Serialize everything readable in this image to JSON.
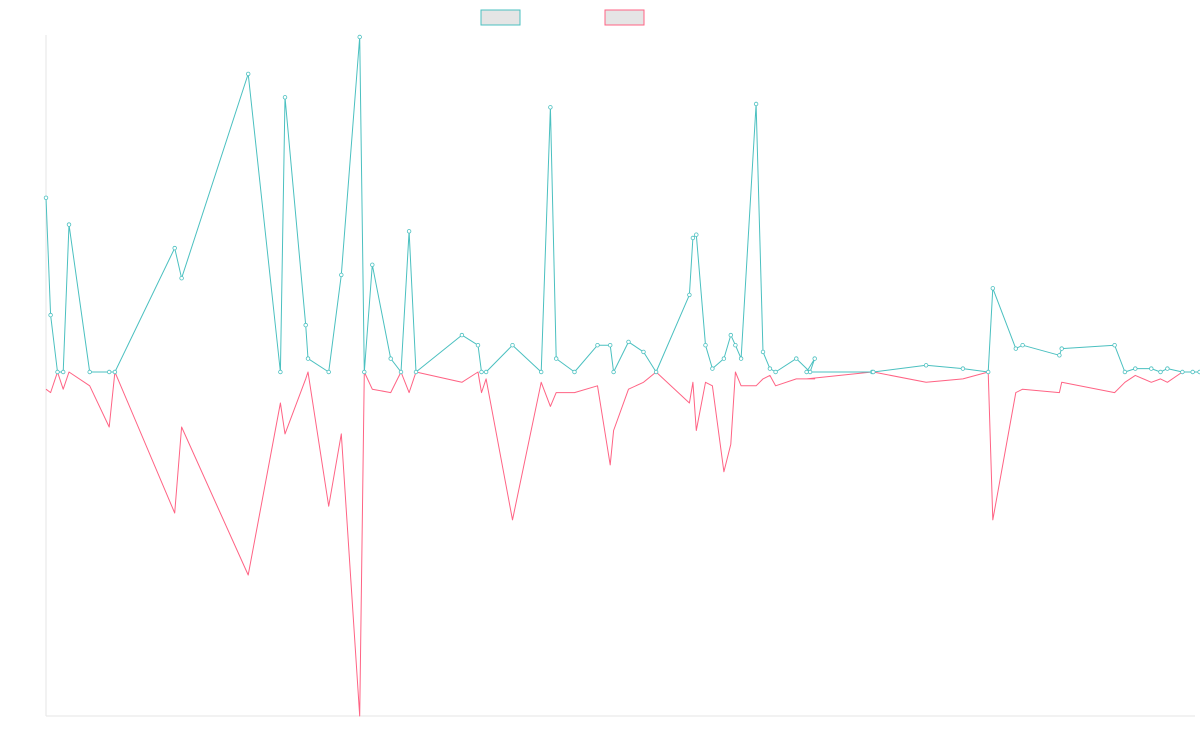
{
  "chart_data": {
    "type": "line",
    "title": "",
    "xlabel": "",
    "ylabel": "",
    "x": [
      0.0,
      0.4,
      1.0,
      1.5,
      2.0,
      3.8,
      5.5,
      6.0,
      11.2,
      11.8,
      17.6,
      20.4,
      20.8,
      22.6,
      22.8,
      24.6,
      25.7,
      27.3,
      27.7,
      28.4,
      30.0,
      30.9,
      31.6,
      32.2,
      36.2,
      37.6,
      37.9,
      38.3,
      40.6,
      43.1,
      43.9,
      44.4,
      46.0,
      48.0,
      49.1,
      49.4,
      50.7,
      52.0,
      53.1,
      56.0,
      56.3,
      56.6,
      57.4,
      58.0,
      59.0,
      59.6,
      60.0,
      60.5,
      61.8,
      62.4,
      63.0,
      63.5,
      65.3,
      66.5,
      66.9,
      66.2,
      71.9,
      72.0,
      76.6,
      79.8,
      82.0,
      82.4,
      84.4,
      85.0,
      88.2,
      88.4,
      93.0,
      93.9,
      94.8,
      96.2,
      97.0,
      97.6,
      98.9,
      99.8,
      100.4
    ],
    "series": [
      {
        "name": "",
        "color": "#4bc0c0",
        "values": [
          0.52,
          0.17,
          0.0,
          0.0,
          0.44,
          0.0,
          0.0,
          0.0,
          0.37,
          0.28,
          0.89,
          0.0,
          0.82,
          0.14,
          0.04,
          0.0,
          0.29,
          1.0,
          0.0,
          0.32,
          0.04,
          0.0,
          0.42,
          0.0,
          0.11,
          0.08,
          0.0,
          0.0,
          0.08,
          0.0,
          0.79,
          0.04,
          0.0,
          0.08,
          0.08,
          0.0,
          0.09,
          0.06,
          0.0,
          0.23,
          0.4,
          0.41,
          0.08,
          0.01,
          0.04,
          0.11,
          0.08,
          0.04,
          0.8,
          0.06,
          0.01,
          0.0,
          0.04,
          0.0,
          0.04,
          0.0,
          0.0,
          0.0,
          0.02,
          0.01,
          0.0,
          0.25,
          0.07,
          0.08,
          0.05,
          0.07,
          0.08,
          0.0,
          0.01,
          0.01,
          0.0,
          0.01,
          0.0,
          0.0,
          0.0
        ]
      },
      {
        "name": "",
        "color": "#ff6384",
        "values": [
          -0.05,
          -0.06,
          0.0,
          -0.05,
          0.0,
          -0.04,
          -0.16,
          0.0,
          -0.41,
          -0.16,
          -0.59,
          -0.09,
          -0.18,
          -0.02,
          0.0,
          -0.39,
          -0.18,
          -1.0,
          0.0,
          -0.05,
          -0.06,
          0.0,
          -0.06,
          0.0,
          -0.03,
          0.0,
          -0.06,
          -0.02,
          -0.43,
          -0.03,
          -0.1,
          -0.06,
          -0.06,
          -0.04,
          -0.27,
          -0.17,
          -0.05,
          -0.03,
          0.0,
          -0.09,
          -0.03,
          -0.17,
          -0.03,
          -0.04,
          -0.29,
          -0.21,
          0.0,
          -0.04,
          -0.04,
          -0.02,
          -0.01,
          -0.04,
          -0.02,
          -0.02,
          -0.02,
          -0.02,
          0.0,
          0.0,
          -0.03,
          -0.02,
          0.0,
          -0.43,
          -0.06,
          -0.05,
          -0.06,
          -0.03,
          -0.06,
          -0.03,
          -0.01,
          -0.03,
          -0.02,
          -0.03,
          0.0,
          0.0,
          0.0
        ]
      }
    ],
    "xlim": [
      0,
      100
    ],
    "ylim": [
      -1,
      1
    ],
    "grid": false,
    "legend_position": "top-center"
  }
}
